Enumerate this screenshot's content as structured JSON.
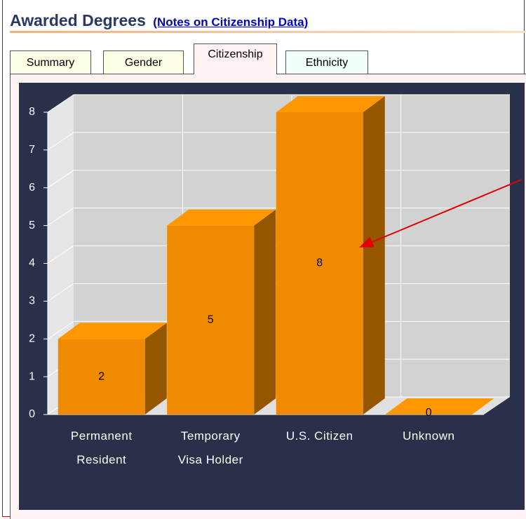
{
  "header": {
    "title": "Awarded Degrees",
    "link": "(Notes on Citizenship Data)"
  },
  "tabs": [
    {
      "label": "Summary",
      "active": false
    },
    {
      "label": "Gender",
      "active": false
    },
    {
      "label": "Citizenship",
      "active": true
    },
    {
      "label": "Ethnicity",
      "active": false
    }
  ],
  "chart_data": {
    "type": "bar",
    "categories": [
      "Permanent\nResident",
      "Temporary\nVisa Holder",
      "U.S. Citizen",
      "Unknown"
    ],
    "values": [
      2,
      5,
      8,
      0
    ],
    "color": "#f08a00",
    "ylim": [
      0,
      8
    ],
    "yticks": [
      0,
      1,
      2,
      3,
      4,
      5,
      6,
      7,
      8
    ],
    "grid": true
  }
}
